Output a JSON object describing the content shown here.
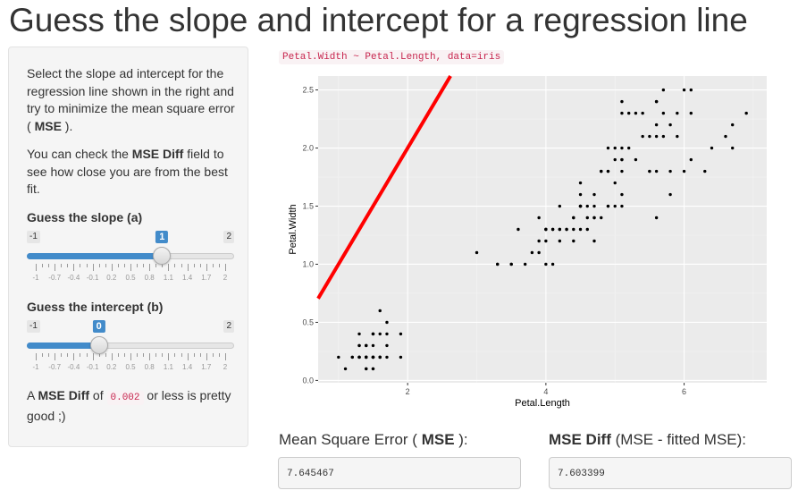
{
  "page": {
    "title": "Guess the slope and intercept for a regression line"
  },
  "sidebar": {
    "intro_before": "Select the slope ad intercept for the regression line shown in the right and try to minimize the mean square error (",
    "intro_bold": "MSE",
    "intro_after": ").",
    "check_before": "You can check the ",
    "check_bold": "MSE Diff",
    "check_after": " field to see how close you are from the best fit.",
    "slope": {
      "label": "Guess the slope (a)",
      "min": "-1",
      "max": "2",
      "value": "1",
      "min_value": -1,
      "max_value": 2,
      "current": 1,
      "grid": [
        "-1",
        "-0.7",
        "-0.4",
        "-0.1",
        "0.2",
        "0.5",
        "0.8",
        "1.1",
        "1.4",
        "1.7",
        "2"
      ]
    },
    "intercept": {
      "label": "Guess the intercept (b)",
      "min": "-1",
      "max": "2",
      "value": "0",
      "min_value": -1,
      "max_value": 2,
      "current": 0,
      "grid": [
        "-1",
        "-0.7",
        "-0.4",
        "-0.1",
        "0.2",
        "0.5",
        "0.8",
        "1.1",
        "1.4",
        "1.7",
        "2"
      ]
    },
    "note_a": "A ",
    "note_bold": "MSE Diff",
    "note_b": " of ",
    "note_code": "0.002",
    "note_c": " or less is pretty good ;)"
  },
  "main": {
    "formula": "Petal.Width ~ Petal.Length, data=iris",
    "mse_label_a": "Mean Square Error (",
    "mse_label_bold": "MSE",
    "mse_label_b": "):",
    "mse_value": "7.645467",
    "diff_label_bold": "MSE Diff",
    "diff_label_rest": " (MSE - fitted MSE):",
    "diff_value": "7.603399"
  },
  "colors": {
    "accent": "#428bca",
    "line": "#ff0000",
    "panel": "#ebebeb"
  },
  "chart_data": {
    "type": "scatter",
    "xlabel": "Petal.Length",
    "ylabel": "Petal.Width",
    "xlim": [
      0.705,
      7.195
    ],
    "ylim": [
      -0.02,
      2.62
    ],
    "xticks": [
      2,
      4,
      6
    ],
    "yticks": [
      0.0,
      0.5,
      1.0,
      1.5,
      2.0,
      2.5
    ],
    "ytick_labels": [
      "0.0",
      "0.5",
      "1.0",
      "1.5",
      "2.0",
      "2.5"
    ],
    "line": {
      "slope": 1,
      "intercept": 0
    },
    "points": [
      [
        1.4,
        0.2
      ],
      [
        1.4,
        0.2
      ],
      [
        1.3,
        0.2
      ],
      [
        1.5,
        0.2
      ],
      [
        1.4,
        0.2
      ],
      [
        1.7,
        0.4
      ],
      [
        1.4,
        0.3
      ],
      [
        1.5,
        0.2
      ],
      [
        1.4,
        0.2
      ],
      [
        1.5,
        0.1
      ],
      [
        1.5,
        0.2
      ],
      [
        1.6,
        0.2
      ],
      [
        1.4,
        0.1
      ],
      [
        1.1,
        0.1
      ],
      [
        1.2,
        0.2
      ],
      [
        1.5,
        0.4
      ],
      [
        1.3,
        0.4
      ],
      [
        1.4,
        0.3
      ],
      [
        1.7,
        0.3
      ],
      [
        1.5,
        0.3
      ],
      [
        1.7,
        0.2
      ],
      [
        1.5,
        0.4
      ],
      [
        1.0,
        0.2
      ],
      [
        1.7,
        0.5
      ],
      [
        1.9,
        0.2
      ],
      [
        1.6,
        0.2
      ],
      [
        1.6,
        0.4
      ],
      [
        1.5,
        0.2
      ],
      [
        1.4,
        0.2
      ],
      [
        1.6,
        0.2
      ],
      [
        1.6,
        0.2
      ],
      [
        1.5,
        0.4
      ],
      [
        1.5,
        0.1
      ],
      [
        1.4,
        0.2
      ],
      [
        1.5,
        0.2
      ],
      [
        1.2,
        0.2
      ],
      [
        1.3,
        0.2
      ],
      [
        1.4,
        0.1
      ],
      [
        1.3,
        0.2
      ],
      [
        1.5,
        0.2
      ],
      [
        1.3,
        0.3
      ],
      [
        1.3,
        0.3
      ],
      [
        1.3,
        0.2
      ],
      [
        1.6,
        0.6
      ],
      [
        1.9,
        0.4
      ],
      [
        1.4,
        0.3
      ],
      [
        1.6,
        0.2
      ],
      [
        1.4,
        0.2
      ],
      [
        1.5,
        0.2
      ],
      [
        1.4,
        0.2
      ],
      [
        4.7,
        1.4
      ],
      [
        4.5,
        1.5
      ],
      [
        4.9,
        1.5
      ],
      [
        4.0,
        1.3
      ],
      [
        4.6,
        1.5
      ],
      [
        4.5,
        1.3
      ],
      [
        4.7,
        1.6
      ],
      [
        3.3,
        1.0
      ],
      [
        4.6,
        1.3
      ],
      [
        3.9,
        1.4
      ],
      [
        3.5,
        1.0
      ],
      [
        4.2,
        1.5
      ],
      [
        4.0,
        1.0
      ],
      [
        4.7,
        1.4
      ],
      [
        3.6,
        1.3
      ],
      [
        4.4,
        1.4
      ],
      [
        4.5,
        1.5
      ],
      [
        4.1,
        1.0
      ],
      [
        4.5,
        1.5
      ],
      [
        3.9,
        1.1
      ],
      [
        4.8,
        1.8
      ],
      [
        4.0,
        1.3
      ],
      [
        4.9,
        1.5
      ],
      [
        4.7,
        1.2
      ],
      [
        4.3,
        1.3
      ],
      [
        4.4,
        1.4
      ],
      [
        4.8,
        1.4
      ],
      [
        5.0,
        1.7
      ],
      [
        4.5,
        1.5
      ],
      [
        3.5,
        1.0
      ],
      [
        3.8,
        1.1
      ],
      [
        3.7,
        1.0
      ],
      [
        3.9,
        1.2
      ],
      [
        5.1,
        1.6
      ],
      [
        4.5,
        1.5
      ],
      [
        4.5,
        1.6
      ],
      [
        4.7,
        1.5
      ],
      [
        4.4,
        1.3
      ],
      [
        4.1,
        1.3
      ],
      [
        4.0,
        1.3
      ],
      [
        4.4,
        1.2
      ],
      [
        4.6,
        1.4
      ],
      [
        4.0,
        1.2
      ],
      [
        3.3,
        1.0
      ],
      [
        4.2,
        1.3
      ],
      [
        4.2,
        1.2
      ],
      [
        4.2,
        1.3
      ],
      [
        4.3,
        1.3
      ],
      [
        3.0,
        1.1
      ],
      [
        4.1,
        1.3
      ],
      [
        6.0,
        2.5
      ],
      [
        5.1,
        1.9
      ],
      [
        5.9,
        2.1
      ],
      [
        5.6,
        1.8
      ],
      [
        5.8,
        2.2
      ],
      [
        6.6,
        2.1
      ],
      [
        4.5,
        1.7
      ],
      [
        6.3,
        1.8
      ],
      [
        5.8,
        1.8
      ],
      [
        6.1,
        2.5
      ],
      [
        5.1,
        2.0
      ],
      [
        5.3,
        1.9
      ],
      [
        5.5,
        2.1
      ],
      [
        5.0,
        2.0
      ],
      [
        5.1,
        2.4
      ],
      [
        5.3,
        2.3
      ],
      [
        5.5,
        1.8
      ],
      [
        6.7,
        2.2
      ],
      [
        6.9,
        2.3
      ],
      [
        5.0,
        1.5
      ],
      [
        5.7,
        2.3
      ],
      [
        4.9,
        2.0
      ],
      [
        6.7,
        2.0
      ],
      [
        4.9,
        1.8
      ],
      [
        5.7,
        2.1
      ],
      [
        6.0,
        1.8
      ],
      [
        4.8,
        1.8
      ],
      [
        4.9,
        1.8
      ],
      [
        5.6,
        2.1
      ],
      [
        5.8,
        1.6
      ],
      [
        6.1,
        1.9
      ],
      [
        6.4,
        2.0
      ],
      [
        5.6,
        2.2
      ],
      [
        5.1,
        1.5
      ],
      [
        5.6,
        1.4
      ],
      [
        6.1,
        2.3
      ],
      [
        5.6,
        2.4
      ],
      [
        5.5,
        1.8
      ],
      [
        4.8,
        1.8
      ],
      [
        5.4,
        2.1
      ],
      [
        5.6,
        2.4
      ],
      [
        5.1,
        2.3
      ],
      [
        5.1,
        1.9
      ],
      [
        5.9,
        2.3
      ],
      [
        5.7,
        2.5
      ],
      [
        5.2,
        2.3
      ],
      [
        5.0,
        1.9
      ],
      [
        5.2,
        2.0
      ],
      [
        5.4,
        2.3
      ],
      [
        5.1,
        1.8
      ]
    ]
  }
}
